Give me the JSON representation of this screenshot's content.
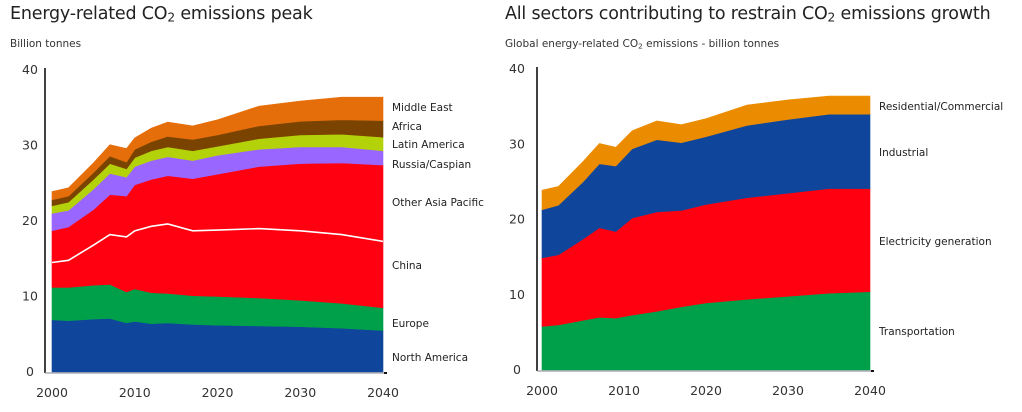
{
  "chart_data": [
    {
      "type": "area",
      "stacked": true,
      "title_pre": "Energy-related CO",
      "title_sub": "2",
      "title_post": " emissions peak",
      "title": "Energy-related CO2 emissions peak",
      "subtitle": "Billion tonnes",
      "xlabel": "",
      "ylabel": "Billion tonnes",
      "xlim": [
        2000,
        2040
      ],
      "ylim": [
        0,
        40
      ],
      "x_ticks": [
        2000,
        2010,
        2020,
        2030,
        2040
      ],
      "y_ticks": [
        0,
        10,
        20,
        30,
        40
      ],
      "grid": false,
      "legend_position": "right (inline labels)",
      "x": [
        2000,
        2002,
        2005,
        2007,
        2009,
        2010,
        2012,
        2014,
        2017,
        2020,
        2025,
        2030,
        2035,
        2040
      ],
      "cumulative_tops": true,
      "series": [
        {
          "name": "North America",
          "color": "#0f469b",
          "values": [
            6.9,
            6.8,
            7.0,
            7.1,
            6.5,
            6.7,
            6.4,
            6.5,
            6.3,
            6.2,
            6.1,
            6.0,
            5.8,
            5.5
          ]
        },
        {
          "name": "Europe",
          "color": "#00a04b",
          "values": [
            11.2,
            11.2,
            11.5,
            11.6,
            10.6,
            11.0,
            10.5,
            10.4,
            10.1,
            10.0,
            9.8,
            9.5,
            9.1,
            8.5
          ]
        },
        {
          "name": "China",
          "color": "#ff0010",
          "values": [
            14.5,
            14.8,
            16.8,
            18.2,
            17.9,
            18.7,
            19.3,
            19.6,
            18.7,
            18.8,
            19.0,
            18.7,
            18.2,
            17.3
          ]
        },
        {
          "name": "Other Asia Pacific",
          "color": "#ff0010",
          "values": [
            18.7,
            19.2,
            21.5,
            23.5,
            23.3,
            24.8,
            25.5,
            26.0,
            25.6,
            26.2,
            27.2,
            27.6,
            27.7,
            27.4
          ]
        },
        {
          "name": "Russia/Caspian",
          "color": "#9966ff",
          "values": [
            21.0,
            21.4,
            24.2,
            26.3,
            25.8,
            27.2,
            28.0,
            28.5,
            28.0,
            28.7,
            29.5,
            29.8,
            29.8,
            29.3
          ]
        },
        {
          "name": "Latin America",
          "color": "#b4d20a",
          "values": [
            22.0,
            22.5,
            25.5,
            27.6,
            26.9,
            28.4,
            29.3,
            29.8,
            29.3,
            29.9,
            30.9,
            31.4,
            31.5,
            31.1
          ]
        },
        {
          "name": "Africa",
          "color": "#7a4400",
          "values": [
            22.8,
            23.3,
            26.4,
            28.6,
            27.8,
            29.5,
            30.5,
            31.2,
            30.8,
            31.4,
            32.6,
            33.2,
            33.4,
            33.3
          ]
        },
        {
          "name": "Middle East",
          "color": "#e66e0a",
          "values": [
            23.9,
            24.4,
            27.7,
            30.1,
            29.6,
            31.0,
            32.3,
            33.1,
            32.6,
            33.4,
            35.2,
            35.9,
            36.4,
            36.4
          ]
        }
      ],
      "separator_line": {
        "after_series": "China",
        "color": "#ffffff"
      }
    },
    {
      "type": "area",
      "stacked": true,
      "title_pre": "All sectors contributing to restrain CO",
      "title_sub": "2",
      "title_post": " emissions growth",
      "title": "All sectors contributing to restrain CO2 emissions growth",
      "subtitle_pre": "Global energy-related CO",
      "subtitle_sub": "2",
      "subtitle_post": " emissions - billion tonnes",
      "subtitle": "Global energy-related CO2 emissions - billion tonnes",
      "xlabel": "",
      "ylabel": "billion tonnes",
      "xlim": [
        2000,
        2040
      ],
      "ylim": [
        0,
        40
      ],
      "x_ticks": [
        2000,
        2010,
        2020,
        2030,
        2040
      ],
      "y_ticks": [
        0,
        10,
        20,
        30,
        40
      ],
      "grid": false,
      "legend_position": "right (inline labels)",
      "x": [
        2000,
        2002,
        2005,
        2007,
        2009,
        2011,
        2014,
        2017,
        2020,
        2025,
        2030,
        2035,
        2040
      ],
      "cumulative_tops": true,
      "series": [
        {
          "name": "Transportation",
          "color": "#00a04b",
          "values": [
            5.8,
            6.0,
            6.6,
            7.0,
            6.9,
            7.3,
            7.8,
            8.4,
            8.9,
            9.4,
            9.8,
            10.2,
            10.4
          ]
        },
        {
          "name": "Electricity generation",
          "color": "#ff0010",
          "values": [
            14.9,
            15.3,
            17.4,
            18.9,
            18.4,
            20.2,
            21.0,
            21.2,
            22.0,
            22.9,
            23.5,
            24.1,
            24.1
          ]
        },
        {
          "name": "Industrial",
          "color": "#0f469b",
          "values": [
            21.3,
            21.9,
            25.0,
            27.4,
            27.1,
            29.4,
            30.6,
            30.2,
            31.0,
            32.5,
            33.3,
            34.0,
            34.0
          ]
        },
        {
          "name": "Residential/Commercial",
          "color": "#eb8c00",
          "values": [
            23.9,
            24.4,
            27.7,
            30.1,
            29.6,
            31.8,
            33.1,
            32.6,
            33.4,
            35.2,
            35.9,
            36.4,
            36.4
          ]
        }
      ]
    }
  ]
}
